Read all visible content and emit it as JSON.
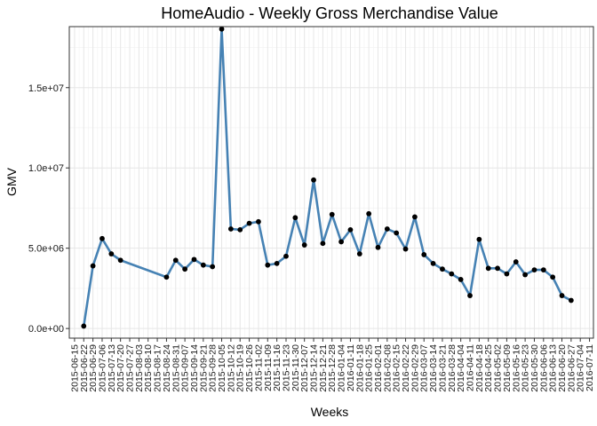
{
  "chart_data": {
    "type": "line",
    "title": "HomeAudio - Weekly Gross Merchandise Value",
    "xlabel": "Weeks",
    "ylabel": "GMV",
    "ylim": [
      -600000,
      18800000
    ],
    "yticks": [
      0,
      5000000,
      10000000,
      15000000
    ],
    "ytick_labels": [
      "0.0e+00",
      "5.0e+06",
      "1.0e+07",
      "1.5e+07"
    ],
    "x_range": [
      "2015-06-11",
      "2016-07-14"
    ],
    "xtick_labels": [
      "2015-06-15",
      "2015-06-22",
      "2015-06-29",
      "2015-07-06",
      "2015-07-13",
      "2015-07-20",
      "2015-07-27",
      "2015-08-03",
      "2015-08-10",
      "2015-08-17",
      "2015-08-24",
      "2015-08-31",
      "2015-09-07",
      "2015-09-14",
      "2015-09-21",
      "2015-09-28",
      "2015-10-05",
      "2015-10-12",
      "2015-10-19",
      "2015-10-26",
      "2015-11-02",
      "2015-11-09",
      "2015-11-16",
      "2015-11-23",
      "2015-11-30",
      "2015-12-07",
      "2015-12-14",
      "2015-12-21",
      "2015-12-28",
      "2016-01-04",
      "2016-01-11",
      "2016-01-18",
      "2016-01-25",
      "2016-02-01",
      "2016-02-08",
      "2016-02-15",
      "2016-02-22",
      "2016-02-29",
      "2016-03-07",
      "2016-03-14",
      "2016-03-21",
      "2016-03-28",
      "2016-04-04",
      "2016-04-11",
      "2016-04-18",
      "2016-04-25",
      "2016-05-02",
      "2016-05-09",
      "2016-05-16",
      "2016-05-23",
      "2016-05-30",
      "2016-06-06",
      "2016-06-13",
      "2016-06-20",
      "2016-06-27",
      "2016-07-04",
      "2016-07-11"
    ],
    "grid": true,
    "line_color": "#4682B4",
    "point_color": "#000000",
    "series": [
      {
        "x": [
          "2015-06-22",
          "2015-06-29",
          "2015-07-06",
          "2015-07-13",
          "2015-07-20",
          "2015-08-24",
          "2015-08-31",
          "2015-09-07",
          "2015-09-14",
          "2015-09-21",
          "2015-09-28",
          "2015-10-05",
          "2015-10-12",
          "2015-10-19",
          "2015-10-26",
          "2015-11-02",
          "2015-11-09",
          "2015-11-16",
          "2015-11-23",
          "2015-11-30",
          "2015-12-07",
          "2015-12-14",
          "2015-12-21",
          "2015-12-28",
          "2016-01-04",
          "2016-01-11",
          "2016-01-18",
          "2016-01-25",
          "2016-02-01",
          "2016-02-08",
          "2016-02-15",
          "2016-02-22",
          "2016-02-29",
          "2016-03-07",
          "2016-03-14",
          "2016-03-21",
          "2016-03-28",
          "2016-04-04",
          "2016-04-11",
          "2016-04-18",
          "2016-04-25",
          "2016-05-02",
          "2016-05-09",
          "2016-05-16",
          "2016-05-23",
          "2016-05-30",
          "2016-06-06",
          "2016-06-13",
          "2016-06-20",
          "2016-06-27"
        ],
        "values": [
          150000,
          3900000,
          5600000,
          4650000,
          4250000,
          3200000,
          4250000,
          3700000,
          4300000,
          3950000,
          3850000,
          18650000,
          6200000,
          6150000,
          6550000,
          6650000,
          3950000,
          4050000,
          4500000,
          6900000,
          5200000,
          9250000,
          5300000,
          7100000,
          5400000,
          6150000,
          4650000,
          7150000,
          5050000,
          6200000,
          5950000,
          4950000,
          6950000,
          4600000,
          4050000,
          3700000,
          3400000,
          3050000,
          2050000,
          5550000,
          3750000,
          3750000,
          3400000,
          4150000,
          3350000,
          3650000,
          3650000,
          3200000,
          2050000,
          1750000
        ]
      }
    ]
  }
}
